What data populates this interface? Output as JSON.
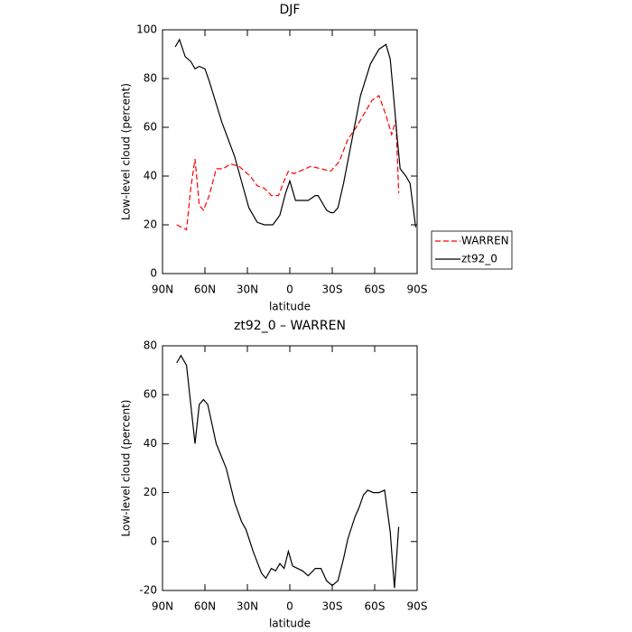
{
  "chart_data": [
    {
      "type": "line",
      "title": "DJF",
      "xlabel": "latitude",
      "ylabel": "Low-level cloud (percent)",
      "xlim": [
        90,
        -90
      ],
      "ylim": [
        0,
        100
      ],
      "xticks": [
        {
          "value": 90,
          "label": "90N"
        },
        {
          "value": 60,
          "label": "60N"
        },
        {
          "value": 30,
          "label": "30N"
        },
        0,
        {
          "value": -30,
          "label": "30S"
        },
        {
          "value": -60,
          "label": "60S"
        },
        {
          "value": -90,
          "label": "90S"
        }
      ],
      "yticks": [
        0,
        20,
        40,
        60,
        80,
        100
      ],
      "legend": "right",
      "series": [
        {
          "name": "WARREN",
          "color": "#ff0000",
          "line_style": "dashed",
          "x": [
            80,
            73,
            70,
            67,
            64,
            61,
            57,
            52,
            47,
            42,
            36,
            28,
            23,
            18,
            13,
            8,
            4,
            1,
            -3,
            -7,
            -15,
            -22,
            -29,
            -35,
            -41,
            -47,
            -53,
            -58,
            -63,
            -68,
            -72,
            -75,
            -77
          ],
          "values": [
            20,
            18,
            35,
            47,
            28,
            26,
            32,
            43,
            43,
            45,
            44,
            40,
            36,
            35,
            32,
            32,
            38,
            42,
            41,
            42,
            44,
            43,
            42,
            46,
            55,
            60,
            66,
            71,
            73,
            65,
            57,
            63,
            33
          ]
        },
        {
          "name": "zt92_0",
          "color": "#000000",
          "line_style": "solid",
          "x": [
            81,
            78,
            74,
            70,
            67,
            64,
            60,
            57,
            48,
            39,
            29,
            23,
            18,
            12,
            7,
            3,
            0,
            -4,
            -13,
            -18,
            -20,
            -26,
            -29,
            -31,
            -34,
            -38,
            -44,
            -50,
            -57,
            -63,
            -68,
            -71,
            -73,
            -76,
            -78,
            -82,
            -85,
            -89
          ],
          "values": [
            93,
            96,
            89,
            87,
            84,
            85,
            84,
            79,
            62,
            48,
            27,
            21,
            20,
            20,
            24,
            33,
            38,
            30,
            30,
            32,
            32,
            26,
            25,
            25,
            27,
            37,
            55,
            73,
            86,
            92,
            94,
            88,
            75,
            55,
            43,
            40,
            37,
            19
          ]
        }
      ]
    },
    {
      "type": "line",
      "title": "zt92_0 – WARREN",
      "xlabel": "latitude",
      "ylabel": "Low-level cloud (percent)",
      "xlim": [
        90,
        -90
      ],
      "ylim": [
        -20,
        80
      ],
      "xticks": [
        {
          "value": 90,
          "label": "90N"
        },
        {
          "value": 60,
          "label": "60N"
        },
        {
          "value": 30,
          "label": "30N"
        },
        0,
        {
          "value": -30,
          "label": "30S"
        },
        {
          "value": -60,
          "label": "60S"
        },
        {
          "value": -90,
          "label": "90S"
        }
      ],
      "yticks": [
        -20,
        0,
        20,
        40,
        60,
        80
      ],
      "series": [
        {
          "color": "#000000",
          "line_style": "solid",
          "x": [
            80,
            77,
            73,
            67,
            64,
            61,
            58,
            52,
            45,
            39,
            34,
            31,
            26,
            20,
            17,
            13,
            10,
            7,
            4,
            1,
            -2,
            -9,
            -13,
            -18,
            -22,
            -26,
            -30,
            -34,
            -38,
            -41,
            -46,
            -49,
            -52,
            -55,
            -59,
            -63,
            -67,
            -71,
            -74,
            -77
          ],
          "values": [
            73,
            76,
            72,
            40,
            56,
            58,
            56,
            40,
            30,
            16,
            8,
            5,
            -4,
            -13,
            -15,
            -11,
            -12,
            -9,
            -11,
            -4,
            -10,
            -12,
            -14,
            -11,
            -11,
            -16,
            -18,
            -16,
            -7,
            1,
            10,
            14,
            19,
            21,
            20,
            20,
            21,
            4,
            -19,
            6
          ]
        }
      ]
    }
  ]
}
